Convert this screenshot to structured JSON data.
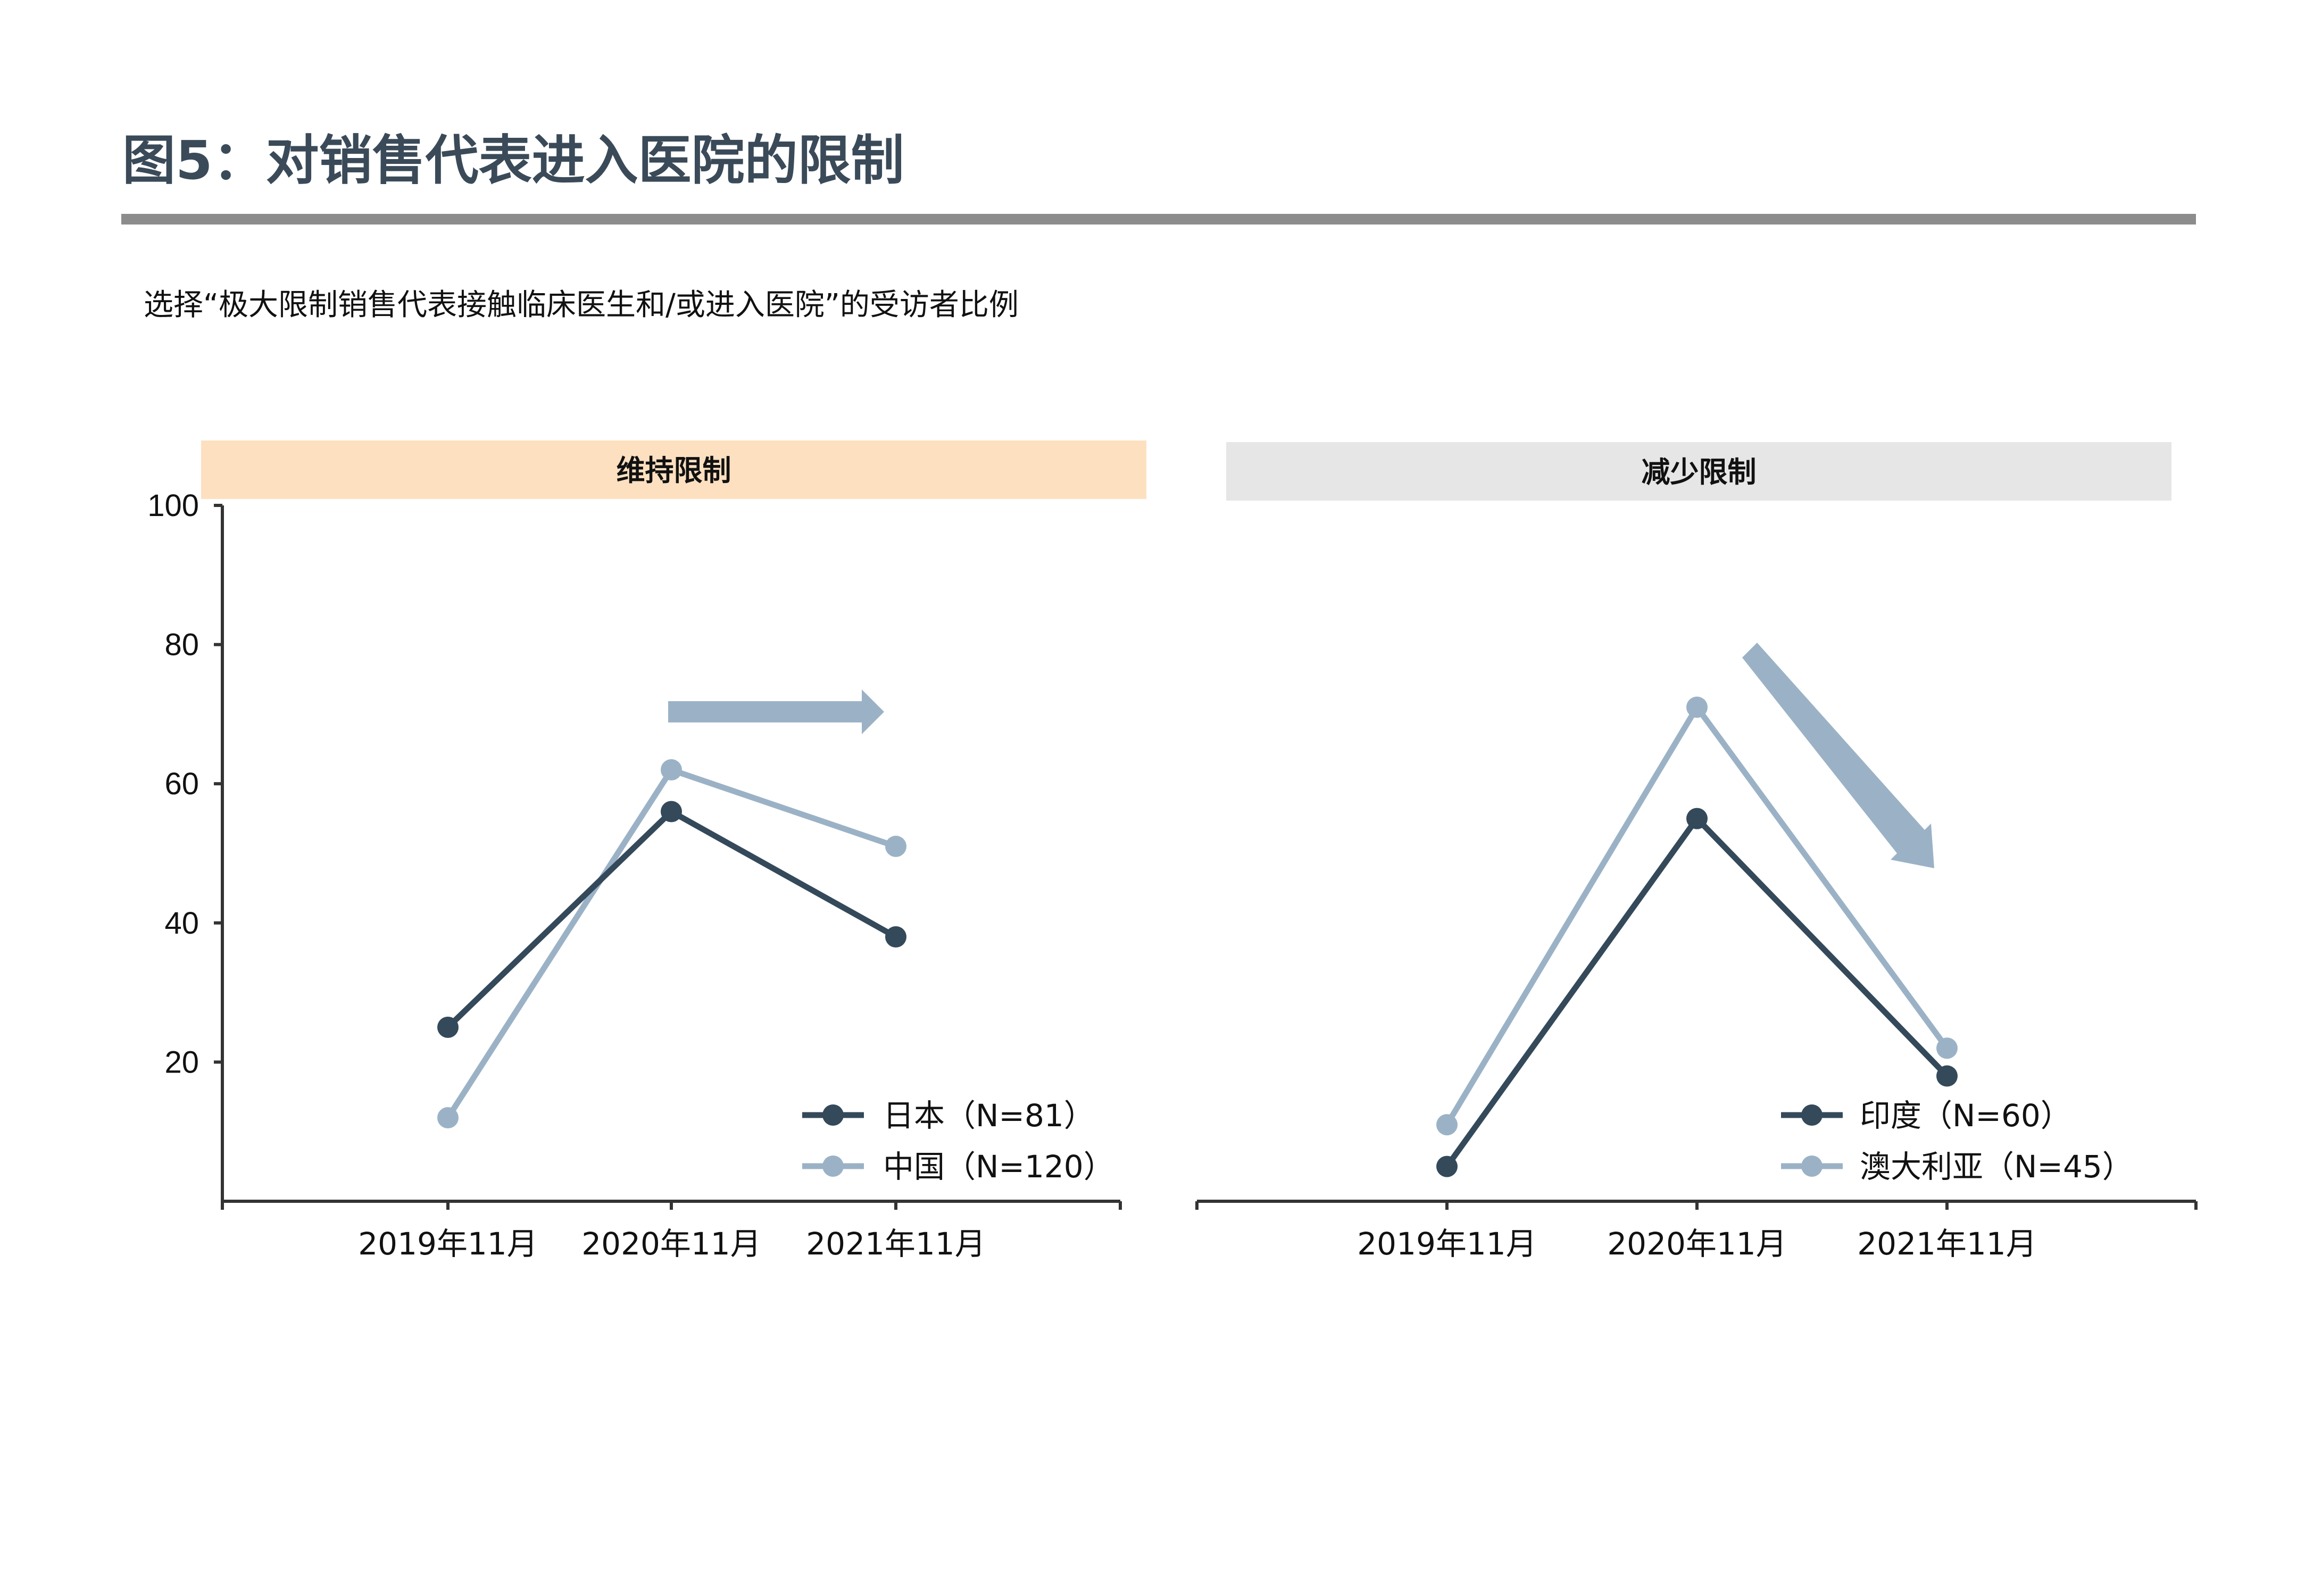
{
  "title": "图5：对销售代表进入医院的限制",
  "subtitle": "选择“极大限制销售代表接触临床医生和/或进入医院”的受访者比例",
  "colors": {
    "dark_series": "#34495a",
    "light_series": "#9bb2c6",
    "arrow": "#9bb2c6",
    "panel_left_header": "#fde0c0",
    "panel_right_header": "#e6e6e6",
    "axis": "#333333",
    "title_rule": "#8c8c8c"
  },
  "chart_data": [
    {
      "type": "line",
      "panel_header": "维持限制",
      "categories": [
        "2019年11月",
        "2020年11月",
        "2021年11月"
      ],
      "series": [
        {
          "name": "日本（N=81）",
          "values": [
            25,
            56,
            38
          ],
          "color": "#34495a"
        },
        {
          "name": "中国（N=120）",
          "values": [
            12,
            62,
            51
          ],
          "color": "#9bb2c6"
        }
      ],
      "ylim": [
        0,
        100
      ],
      "yticks": [
        20,
        40,
        60,
        80,
        100
      ],
      "legend": "bottom-right",
      "grid": false,
      "annotation": "arrow-right"
    },
    {
      "type": "line",
      "panel_header": "减少限制",
      "categories": [
        "2019年11月",
        "2020年11月",
        "2021年11月"
      ],
      "series": [
        {
          "name": "印度（N=60）",
          "values": [
            5,
            55,
            18
          ],
          "color": "#34495a"
        },
        {
          "name": "澳大利亚（N=45）",
          "values": [
            11,
            71,
            22
          ],
          "color": "#9bb2c6"
        }
      ],
      "ylim": [
        0,
        100
      ],
      "yticks": [],
      "legend": "bottom-right",
      "grid": false,
      "annotation": "arrow-down-right"
    }
  ]
}
